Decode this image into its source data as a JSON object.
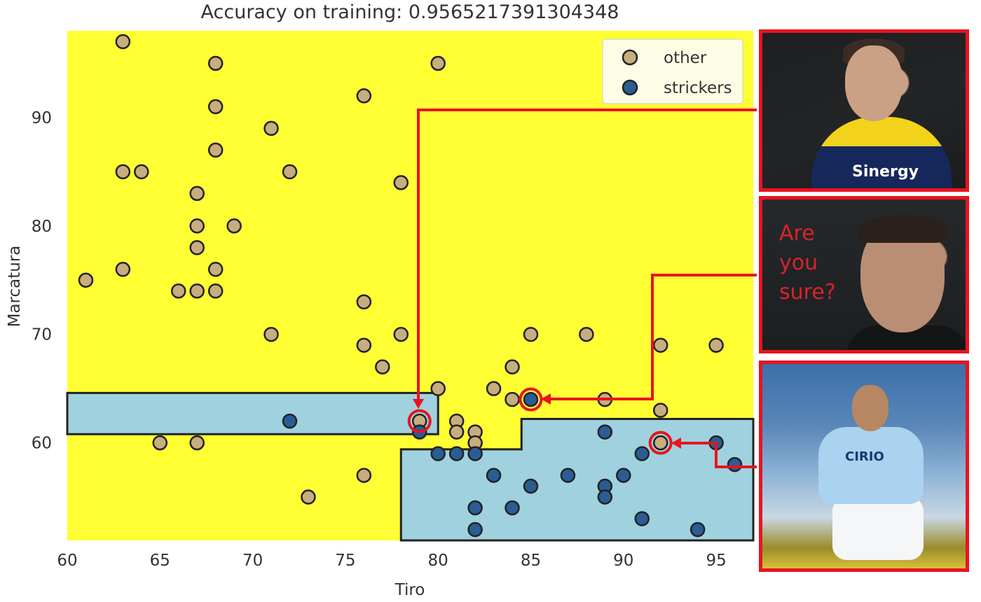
{
  "chart_data": {
    "type": "scatter",
    "title": "Accuracy on training: 0.9565217391304348",
    "xlabel": "Tiro",
    "ylabel": "Marcatura",
    "xlim": [
      60,
      97
    ],
    "ylim": [
      51,
      98
    ],
    "xticks": [
      60,
      65,
      70,
      75,
      80,
      85,
      90,
      95
    ],
    "yticks": [
      60,
      70,
      80,
      90
    ],
    "grid": false,
    "legend": {
      "placement": "top-right",
      "entries": [
        "other",
        "strickers"
      ]
    },
    "background_color": "#ffff33",
    "region_color": "#9fd2de",
    "series": [
      {
        "name": "other",
        "color": "#c8ad7f",
        "points": [
          [
            61,
            75
          ],
          [
            63,
            97
          ],
          [
            63,
            85
          ],
          [
            63,
            76
          ],
          [
            64,
            85
          ],
          [
            65,
            60
          ],
          [
            66,
            74
          ],
          [
            67,
            83
          ],
          [
            67,
            80
          ],
          [
            67,
            78
          ],
          [
            67,
            74
          ],
          [
            67,
            60
          ],
          [
            68,
            95
          ],
          [
            68,
            91
          ],
          [
            68,
            87
          ],
          [
            68,
            76
          ],
          [
            68,
            74
          ],
          [
            69,
            80
          ],
          [
            71,
            89
          ],
          [
            71,
            70
          ],
          [
            72,
            85
          ],
          [
            73,
            55
          ],
          [
            76,
            92
          ],
          [
            76,
            73
          ],
          [
            76,
            69
          ],
          [
            76,
            57
          ],
          [
            77,
            67
          ],
          [
            78,
            84
          ],
          [
            78,
            70
          ],
          [
            79,
            62
          ],
          [
            80,
            95
          ],
          [
            80,
            65
          ],
          [
            81,
            62
          ],
          [
            81,
            61
          ],
          [
            82,
            61
          ],
          [
            82,
            60
          ],
          [
            83,
            65
          ],
          [
            84,
            67
          ],
          [
            84,
            64
          ],
          [
            85,
            70
          ],
          [
            88,
            70
          ],
          [
            89,
            64
          ],
          [
            92,
            69
          ],
          [
            92,
            63
          ],
          [
            92,
            60
          ],
          [
            95,
            69
          ]
        ]
      },
      {
        "name": "strickers",
        "color": "#2b5c94",
        "points": [
          [
            72,
            62
          ],
          [
            79,
            61
          ],
          [
            80,
            59
          ],
          [
            81,
            59
          ],
          [
            82,
            59
          ],
          [
            82,
            54
          ],
          [
            82,
            52
          ],
          [
            83,
            57
          ],
          [
            84,
            54
          ],
          [
            85,
            64
          ],
          [
            85,
            56
          ],
          [
            87,
            57
          ],
          [
            89,
            61
          ],
          [
            89,
            56
          ],
          [
            89,
            55
          ],
          [
            90,
            57
          ],
          [
            91,
            59
          ],
          [
            91,
            53
          ],
          [
            94,
            52
          ],
          [
            95,
            60
          ],
          [
            96,
            58
          ]
        ]
      }
    ],
    "decision_regions": [
      [
        [
          60,
          64.6
        ],
        [
          80,
          64.6
        ],
        [
          80,
          60.8
        ],
        [
          60,
          60.8
        ]
      ],
      [
        [
          78,
          51
        ],
        [
          78,
          59.4
        ],
        [
          84.5,
          59.4
        ],
        [
          84.5,
          62.2
        ],
        [
          97,
          62.2
        ],
        [
          97,
          51
        ]
      ]
    ],
    "highlighted_points": [
      [
        79,
        62
      ],
      [
        85,
        64
      ],
      [
        92,
        60
      ]
    ]
  },
  "annotations": {
    "panel_text_lines": [
      "Are",
      "you",
      "sure?"
    ],
    "sponsor_1": "Sinergy",
    "sponsor_3": "CIRIO",
    "highlight_color": "#e8141e"
  }
}
